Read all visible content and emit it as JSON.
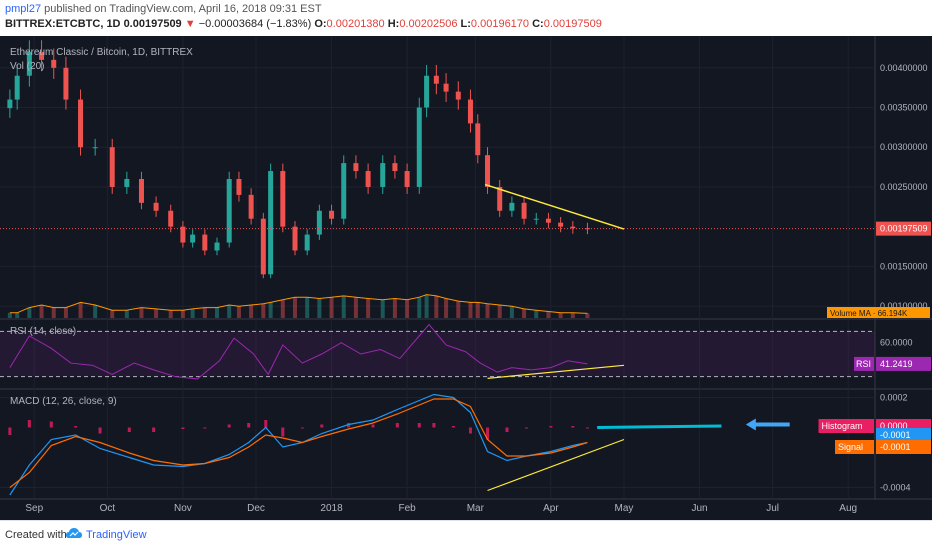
{
  "header": {
    "author": "pmpl27",
    "published_text": " published on TradingView.com, April 16, 2018 09:31 EST",
    "symbol": "BITTREX:ETCBTC, 1D",
    "last": "0.00197509",
    "down_arrow": "▼",
    "change": "−0.00003684 (−1.83%)",
    "o_label": "O:",
    "o_value": "0.00201380",
    "h_label": "H:",
    "h_value": "0.00202506",
    "l_label": "L:",
    "l_value": "0.00196170",
    "c_label": "C:",
    "c_value": "0.00197509"
  },
  "footer": {
    "created": "Created with",
    "brand": "TradingView"
  },
  "colors": {
    "background": "#131722",
    "up": "#26a69a",
    "down": "#ef5350",
    "rsi": "#9c27b0",
    "macd": "#2196f3",
    "signal": "#ff6d00",
    "trendline": "#ffeb3b",
    "annotation": "#00bcd4",
    "volume_ma": "#ff9800"
  },
  "chart_data": [
    {
      "type": "candlestick",
      "title": "Ethereum Classic / Bitcoin, 1D, BITTREX",
      "indicator_label": "Vol (20)",
      "ylim": [
        0.00085,
        0.00435
      ],
      "y_ticks": [
        "0.00400000",
        "0.00350000",
        "0.00300000",
        "0.00250000",
        "0.00150000",
        "0.00100000"
      ],
      "y_tick_values": [
        0.004,
        0.0035,
        0.003,
        0.0025,
        0.0015,
        0.001
      ],
      "current_price_label": "0.00197509",
      "current_price": 0.00197509,
      "volume_ma_label": "Volume MA · 66.194K",
      "x_labels": [
        "Sep",
        "Oct",
        "Nov",
        "Dec",
        "2018",
        "Feb",
        "Mar",
        "Apr",
        "May",
        "Jun",
        "Jul",
        "Aug"
      ],
      "x_label_dates": [
        "2017-09-01",
        "2017-10-01",
        "2017-11-01",
        "2017-12-01",
        "2018-01-01",
        "2018-02-01",
        "2018-03-01",
        "2018-04-01",
        "2018-05-01",
        "2018-06-01",
        "2018-07-01",
        "2018-08-01"
      ],
      "date_range": [
        "2017-08-20",
        "2018-08-12"
      ],
      "close_series": {
        "dates": [
          "2017-08-22",
          "2017-08-25",
          "2017-08-30",
          "2017-09-04",
          "2017-09-09",
          "2017-09-14",
          "2017-09-20",
          "2017-09-26",
          "2017-10-03",
          "2017-10-09",
          "2017-10-15",
          "2017-10-21",
          "2017-10-27",
          "2017-11-01",
          "2017-11-05",
          "2017-11-10",
          "2017-11-15",
          "2017-11-20",
          "2017-11-24",
          "2017-11-29",
          "2017-12-04",
          "2017-12-07",
          "2017-12-12",
          "2017-12-17",
          "2017-12-22",
          "2017-12-27",
          "2018-01-01",
          "2018-01-06",
          "2018-01-11",
          "2018-01-16",
          "2018-01-22",
          "2018-01-27",
          "2018-02-01",
          "2018-02-06",
          "2018-02-09",
          "2018-02-13",
          "2018-02-17",
          "2018-02-22",
          "2018-02-27",
          "2018-03-02",
          "2018-03-06",
          "2018-03-11",
          "2018-03-16",
          "2018-03-21",
          "2018-03-26",
          "2018-03-31",
          "2018-04-05",
          "2018-04-10",
          "2018-04-16"
        ],
        "values": [
          0.0036,
          0.0039,
          0.0042,
          0.0041,
          0.004,
          0.0036,
          0.003,
          0.003,
          0.0025,
          0.0026,
          0.0023,
          0.0022,
          0.002,
          0.0018,
          0.0019,
          0.0017,
          0.0018,
          0.0026,
          0.0024,
          0.0021,
          0.0014,
          0.0027,
          0.002,
          0.0017,
          0.0019,
          0.0022,
          0.0021,
          0.0028,
          0.0027,
          0.0025,
          0.0028,
          0.0027,
          0.0025,
          0.0035,
          0.0039,
          0.0038,
          0.0037,
          0.0036,
          0.0033,
          0.0029,
          0.0025,
          0.0022,
          0.0023,
          0.0021,
          0.0021,
          0.00205,
          0.002,
          0.00198,
          0.00197509
        ]
      },
      "volume_ma_values": [
        0.2,
        0.2,
        0.4,
        0.5,
        0.4,
        0.4,
        0.6,
        0.5,
        0.3,
        0.3,
        0.4,
        0.35,
        0.3,
        0.3,
        0.35,
        0.4,
        0.4,
        0.5,
        0.45,
        0.5,
        0.55,
        0.6,
        0.7,
        0.8,
        0.8,
        0.75,
        0.8,
        0.85,
        0.8,
        0.75,
        0.7,
        0.75,
        0.7,
        0.8,
        0.9,
        0.85,
        0.75,
        0.65,
        0.6,
        0.6,
        0.55,
        0.5,
        0.45,
        0.35,
        0.3,
        0.25,
        0.2,
        0.2,
        0.18
      ],
      "trendline": {
        "from": [
          "2018-03-05",
          0.00253
        ],
        "to": [
          "2018-05-01",
          0.00197
        ]
      }
    },
    {
      "type": "line",
      "title": "RSI (14, close)",
      "ylim": [
        20,
        80
      ],
      "bands": [
        70,
        30
      ],
      "y_ticks": [
        "60.0000"
      ],
      "y_tick_values": [
        60
      ],
      "current_label": "RSI",
      "current_value": "41.2419",
      "current_numeric": 41.2419,
      "series": [
        {
          "name": "RSI",
          "dates": [
            "2017-08-22",
            "2017-08-30",
            "2017-09-08",
            "2017-09-16",
            "2017-09-25",
            "2017-10-03",
            "2017-10-12",
            "2017-10-20",
            "2017-10-29",
            "2017-11-07",
            "2017-11-16",
            "2017-11-22",
            "2017-11-30",
            "2017-12-06",
            "2017-12-12",
            "2017-12-20",
            "2017-12-28",
            "2018-01-05",
            "2018-01-13",
            "2018-01-21",
            "2018-01-29",
            "2018-02-06",
            "2018-02-10",
            "2018-02-17",
            "2018-02-25",
            "2018-03-03",
            "2018-03-10",
            "2018-03-16",
            "2018-03-24",
            "2018-04-01",
            "2018-04-08",
            "2018-04-16"
          ],
          "values": [
            38,
            66,
            55,
            42,
            40,
            32,
            42,
            36,
            30,
            28,
            44,
            64,
            50,
            32,
            58,
            42,
            50,
            60,
            50,
            54,
            46,
            66,
            76,
            58,
            52,
            42,
            34,
            38,
            36,
            38,
            44,
            41.2419
          ]
        }
      ],
      "trendline": {
        "from": [
          "2018-03-06",
          28.5
        ],
        "to": [
          "2018-05-01",
          40
        ]
      }
    },
    {
      "type": "histogram+line",
      "title": "MACD (12, 26, close, 9)",
      "ylim": [
        -0.00047,
        0.00025
      ],
      "y_ticks": [
        "0.0002",
        "-0.0004"
      ],
      "y_tick_values": [
        0.0002,
        -0.0004
      ],
      "labels": [
        {
          "name": "Histogram",
          "value": "0.0000"
        },
        {
          "name": "MACD",
          "value": "-0.0001"
        },
        {
          "name": "Signal",
          "value": "-0.0001"
        }
      ],
      "series": [
        {
          "name": "MACD",
          "dates": [
            "2017-08-22",
            "2017-08-30",
            "2017-09-08",
            "2017-09-18",
            "2017-09-28",
            "2017-10-10",
            "2017-10-20",
            "2017-11-01",
            "2017-11-10",
            "2017-11-20",
            "2017-11-28",
            "2017-12-05",
            "2017-12-12",
            "2017-12-20",
            "2017-12-28",
            "2018-01-08",
            "2018-01-18",
            "2018-01-28",
            "2018-02-06",
            "2018-02-12",
            "2018-02-20",
            "2018-02-27",
            "2018-03-06",
            "2018-03-14",
            "2018-03-22",
            "2018-04-01",
            "2018-04-10",
            "2018-04-16"
          ],
          "values": [
            -0.00045,
            -0.00025,
            -8e-05,
            -5e-05,
            -0.00014,
            -0.0002,
            -0.00025,
            -0.00026,
            -0.00024,
            -0.00018,
            -0.0001,
            0.0,
            -0.00013,
            -0.0001,
            -4e-05,
            2e-05,
            5e-05,
            0.00012,
            0.00018,
            0.00022,
            0.0002,
            0.0001,
            -0.00016,
            -0.00022,
            -0.00019,
            -0.00016,
            -0.00012,
            -0.0001
          ]
        },
        {
          "name": "Signal",
          "dates": [
            "2017-08-22",
            "2017-08-30",
            "2017-09-08",
            "2017-09-18",
            "2017-09-28",
            "2017-10-10",
            "2017-10-20",
            "2017-11-01",
            "2017-11-10",
            "2017-11-20",
            "2017-11-28",
            "2017-12-05",
            "2017-12-12",
            "2017-12-20",
            "2017-12-28",
            "2018-01-08",
            "2018-01-18",
            "2018-01-28",
            "2018-02-06",
            "2018-02-12",
            "2018-02-20",
            "2018-02-27",
            "2018-03-06",
            "2018-03-14",
            "2018-03-22",
            "2018-04-01",
            "2018-04-10",
            "2018-04-16"
          ],
          "values": [
            -0.0004,
            -0.0003,
            -0.00012,
            -6e-05,
            -0.0001,
            -0.00017,
            -0.00022,
            -0.00025,
            -0.00024,
            -0.0002,
            -0.00013,
            -5e-05,
            -7e-05,
            -0.0001,
            -6e-05,
            -1e-05,
            3e-05,
            9e-05,
            0.00015,
            0.00019,
            0.00019,
            0.00014,
            -8e-05,
            -0.00019,
            -0.00019,
            -0.00017,
            -0.00013,
            -0.0001
          ]
        }
      ],
      "trendline": {
        "from": [
          "2018-03-06",
          -0.00042
        ],
        "to": [
          "2018-05-01",
          -8e-05
        ]
      },
      "annotation_line": {
        "from": [
          "2018-04-20",
          0.0
        ],
        "to": [
          "2018-06-10",
          1e-05
        ]
      },
      "annotation_arrow": {
        "tail": [
          "2018-07-08",
          2e-05
        ],
        "head": [
          "2018-06-20",
          2e-05
        ]
      }
    }
  ]
}
